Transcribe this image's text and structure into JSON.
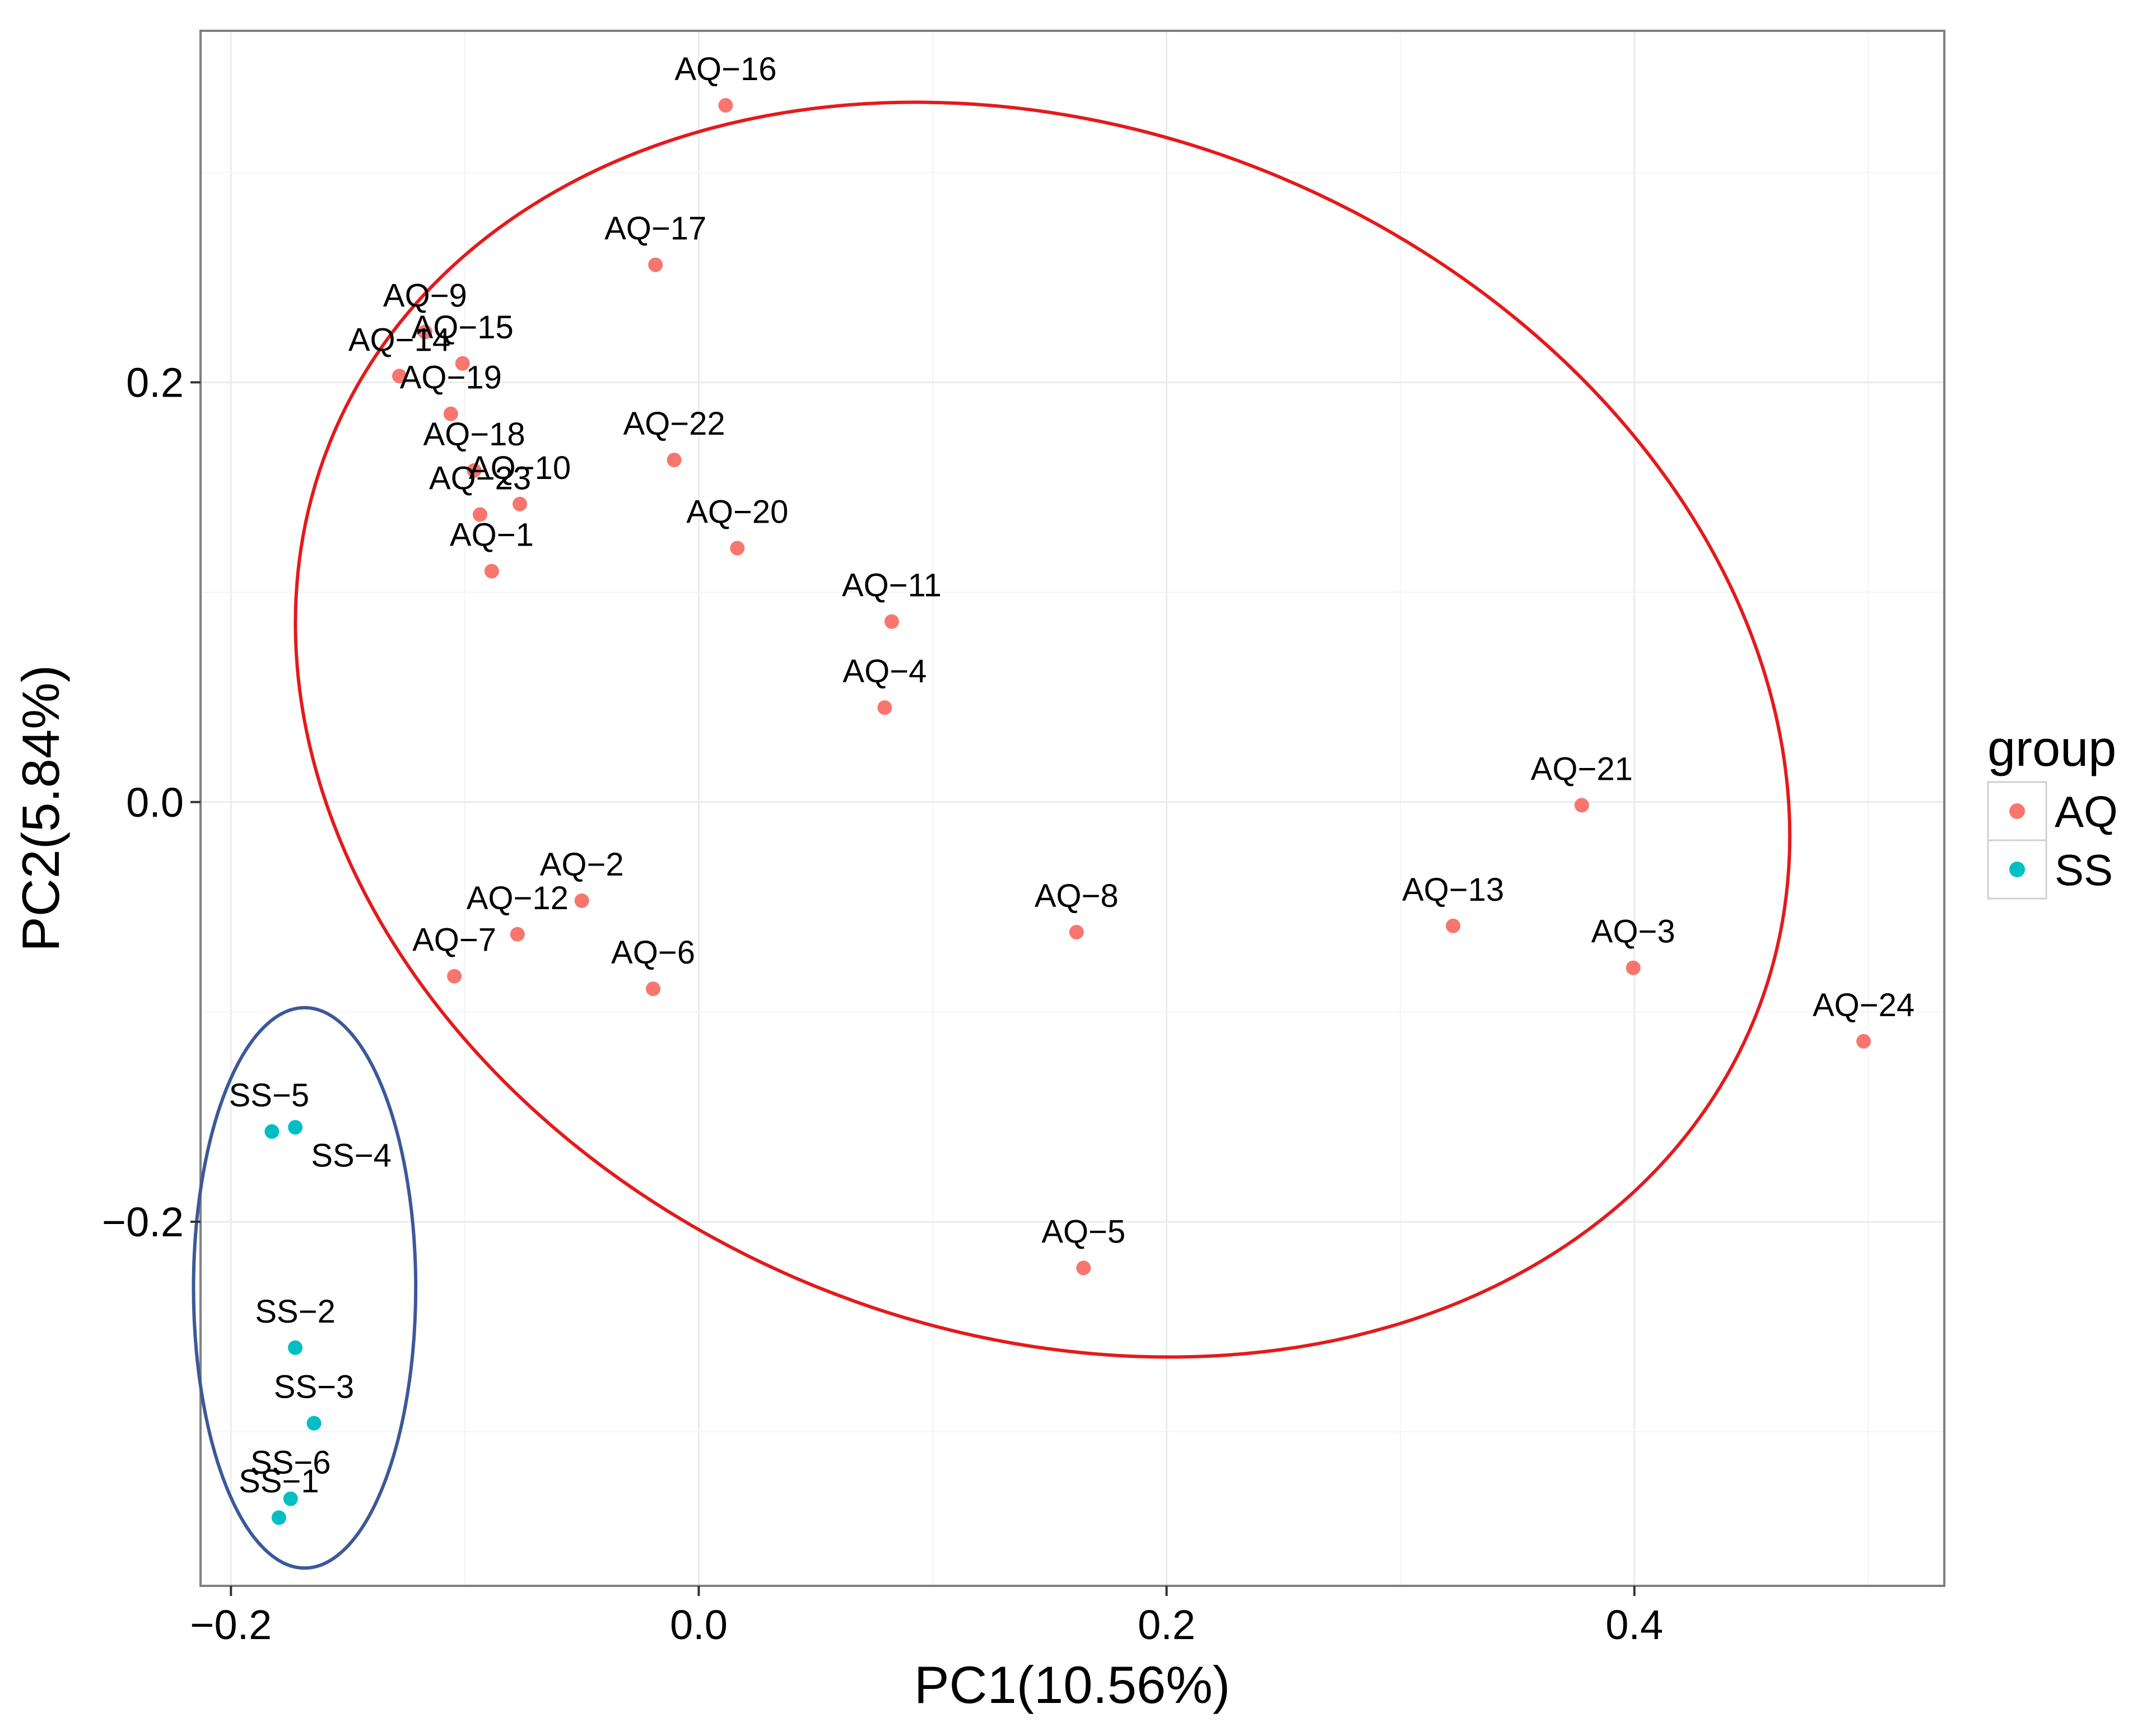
{
  "chart_data": {
    "type": "scatter",
    "xlabel": "PC1(10.56%)",
    "ylabel": "PC2(5.84%)",
    "xlim": [
      -0.213,
      0.5325
    ],
    "ylim": [
      -0.3735,
      0.3675
    ],
    "x_ticks": [
      -0.2,
      0.0,
      0.2,
      0.4
    ],
    "x_tick_labels": [
      "−0.2",
      "0.0",
      "0.2",
      "0.4"
    ],
    "y_ticks": [
      -0.2,
      0.0,
      0.2
    ],
    "y_tick_labels": [
      "−0.2",
      "0.0",
      "0.2"
    ],
    "grid": true,
    "legend": {
      "title": "group",
      "position": "right",
      "entries": [
        {
          "label": "AQ",
          "color": "#F8766D"
        },
        {
          "label": "SS",
          "color": "#00BFC4"
        }
      ]
    },
    "series": [
      {
        "name": "AQ",
        "color": "#F8766D",
        "points": [
          {
            "label": "AQ−16",
            "x": 0.0115,
            "y": 0.332,
            "dx": 0,
            "dy": -45
          },
          {
            "label": "AQ−17",
            "x": -0.0185,
            "y": 0.256,
            "dx": 0,
            "dy": -45
          },
          {
            "label": "AQ−9",
            "x": -0.117,
            "y": 0.224,
            "dx": 0,
            "dy": -45
          },
          {
            "label": "AQ−15",
            "x": -0.101,
            "y": 0.209,
            "dx": 0,
            "dy": -45
          },
          {
            "label": "AQ−14",
            "x": -0.128,
            "y": 0.203,
            "dx": 0,
            "dy": -45
          },
          {
            "label": "AQ−19",
            "x": -0.106,
            "y": 0.185,
            "dx": 0,
            "dy": -45
          },
          {
            "label": "AQ−22",
            "x": -0.0105,
            "y": 0.163,
            "dx": 0,
            "dy": -45
          },
          {
            "label": "AQ−18",
            "x": -0.096,
            "y": 0.158,
            "dx": 0,
            "dy": -45
          },
          {
            "label": "AQ−10",
            "x": -0.0765,
            "y": 0.142,
            "dx": 0,
            "dy": -45
          },
          {
            "label": "AQ−23",
            "x": -0.0935,
            "y": 0.137,
            "dx": 0,
            "dy": -45
          },
          {
            "label": "AQ−1",
            "x": -0.0885,
            "y": 0.11,
            "dx": 0,
            "dy": -45
          },
          {
            "label": "AQ−20",
            "x": 0.0165,
            "y": 0.121,
            "dx": 0,
            "dy": -45
          },
          {
            "label": "AQ−11",
            "x": 0.0825,
            "y": 0.086,
            "dx": 0,
            "dy": -45
          },
          {
            "label": "AQ−4",
            "x": 0.0795,
            "y": 0.045,
            "dx": 0,
            "dy": -45
          },
          {
            "label": "AQ−21",
            "x": 0.3775,
            "y": -0.0015,
            "dx": 0,
            "dy": -45
          },
          {
            "label": "AQ−2",
            "x": -0.05,
            "y": -0.047,
            "dx": 0,
            "dy": -45
          },
          {
            "label": "AQ−12",
            "x": -0.0775,
            "y": -0.063,
            "dx": 0,
            "dy": -45
          },
          {
            "label": "AQ−7",
            "x": -0.1045,
            "y": -0.083,
            "dx": 0,
            "dy": -45
          },
          {
            "label": "AQ−6",
            "x": -0.0195,
            "y": -0.089,
            "dx": 0,
            "dy": -45
          },
          {
            "label": "AQ−8",
            "x": 0.1615,
            "y": -0.062,
            "dx": 0,
            "dy": -45
          },
          {
            "label": "AQ−13",
            "x": 0.3225,
            "y": -0.059,
            "dx": 0,
            "dy": -45
          },
          {
            "label": "AQ−3",
            "x": 0.3995,
            "y": -0.079,
            "dx": 0,
            "dy": -45
          },
          {
            "label": "AQ−24",
            "x": 0.498,
            "y": -0.114,
            "dx": 0,
            "dy": -45
          },
          {
            "label": "AQ−5",
            "x": 0.1645,
            "y": -0.222,
            "dx": 0,
            "dy": -45
          }
        ]
      },
      {
        "name": "SS",
        "color": "#00BFC4",
        "points": [
          {
            "label": "SS−5",
            "x": -0.1825,
            "y": -0.157,
            "dx": -5,
            "dy": -45
          },
          {
            "label": "SS−4",
            "x": -0.1725,
            "y": -0.155,
            "dx": 100,
            "dy": 70
          },
          {
            "label": "SS−2",
            "x": -0.1725,
            "y": -0.26,
            "dx": 0,
            "dy": -45
          },
          {
            "label": "SS−3",
            "x": -0.1645,
            "y": -0.296,
            "dx": 0,
            "dy": -45
          },
          {
            "label": "SS−6",
            "x": -0.1745,
            "y": -0.332,
            "dx": 0,
            "dy": -45
          },
          {
            "label": "SS−1",
            "x": -0.1795,
            "y": -0.341,
            "dx": 0,
            "dy": -45
          }
        ]
      }
    ],
    "ellipses": [
      {
        "group": "AQ",
        "color": "#E41A1C",
        "cx": 0.147,
        "cy": 0.0345,
        "rx": 0.3285,
        "ry": 0.2865,
        "angle": 22
      },
      {
        "group": "SS",
        "color": "#3B5998",
        "cx": -0.1685,
        "cy": -0.2315,
        "rx": 0.0475,
        "ry": 0.1335,
        "angle": 0
      }
    ]
  }
}
